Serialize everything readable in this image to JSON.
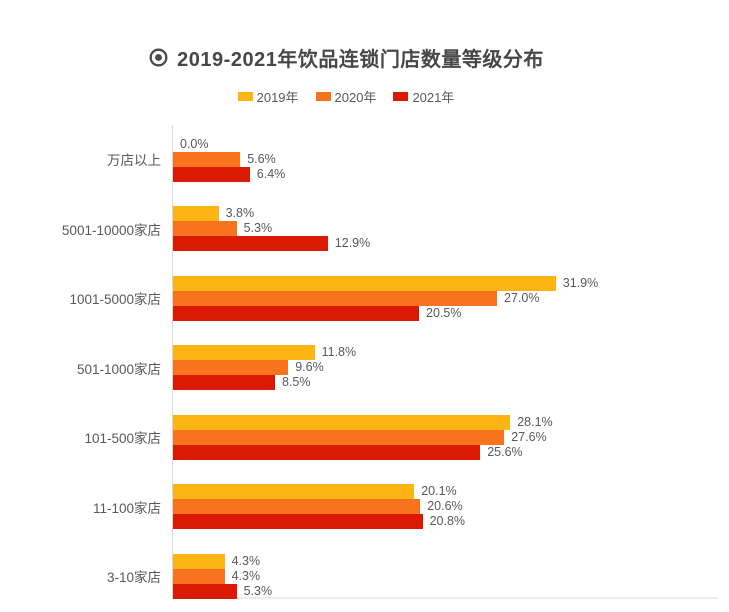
{
  "header": {
    "title": "2019-2021年饮品连锁门店数量等级分布",
    "icon": "bullseye-icon",
    "title_color": "#474747"
  },
  "legend": {
    "items": [
      {
        "label": "2019年",
        "color": "#FDB513"
      },
      {
        "label": "2020年",
        "color": "#F7731D"
      },
      {
        "label": "2021年",
        "color": "#DB1A04"
      }
    ]
  },
  "chart_data": {
    "type": "bar",
    "orientation": "horizontal",
    "title": "2019-2021年饮品连锁门店数量等级分布",
    "categories": [
      "万店以上",
      "5001-10000家店",
      "1001-5000家店",
      "501-1000家店",
      "101-500家店",
      "11-100家店",
      "3-10家店"
    ],
    "series": [
      {
        "name": "2019年",
        "color": "#FDB513",
        "values": [
          0.0,
          3.8,
          31.9,
          11.8,
          28.1,
          20.1,
          4.3
        ],
        "labels": [
          "0.0%",
          "3.8%",
          "31.9%",
          "11.8%",
          "28.1%",
          "20.1%",
          "4.3%"
        ]
      },
      {
        "name": "2020年",
        "color": "#F7731D",
        "values": [
          5.6,
          5.3,
          27.0,
          9.6,
          27.6,
          20.6,
          4.3
        ],
        "labels": [
          "5.6%",
          "5.3%",
          "27.0%",
          "9.6%",
          "27.6%",
          "20.6%",
          "4.3%"
        ]
      },
      {
        "name": "2021年",
        "color": "#DB1A04",
        "values": [
          6.4,
          12.9,
          20.5,
          8.5,
          25.6,
          20.8,
          5.3
        ],
        "labels": [
          "6.4%",
          "12.9%",
          "20.5%",
          "8.5%",
          "25.6%",
          "20.8%",
          "5.3%"
        ]
      }
    ],
    "value_suffix": "%",
    "xlim": [
      0,
      45.5
    ],
    "grid": false,
    "legend_position": "top-center",
    "value_label_color": "#595959",
    "category_label_color": "#595959",
    "axis_line_color": "#d9d9d9",
    "baseline_color": "#ededed"
  }
}
